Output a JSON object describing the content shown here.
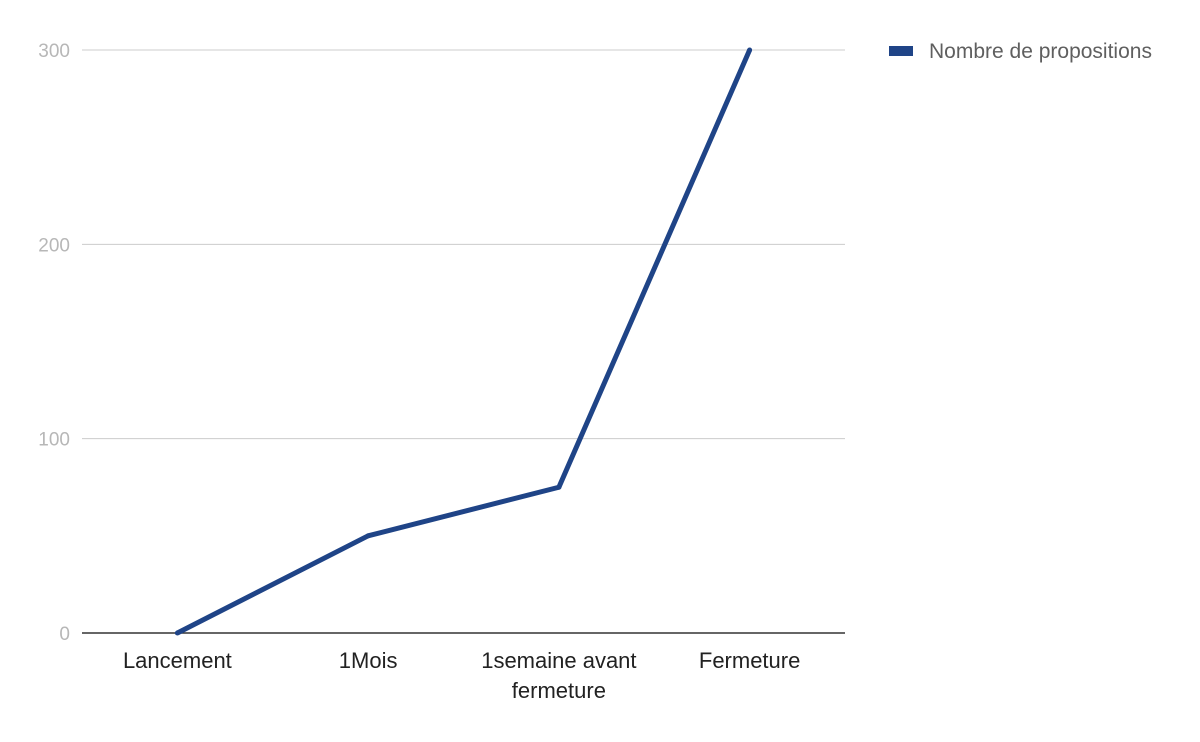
{
  "chart_data": {
    "type": "line",
    "title": "",
    "xlabel": "",
    "ylabel": "",
    "categories": [
      [
        "Lancement"
      ],
      [
        "1Mois"
      ],
      [
        "1semaine avant",
        "fermeture"
      ],
      [
        "Fermeture"
      ]
    ],
    "series": [
      {
        "name": "Nombre de propositions",
        "values": [
          0,
          50,
          75,
          300
        ],
        "color": "#1f4487"
      }
    ],
    "ylim": [
      0,
      300
    ],
    "yticks": [
      "0",
      "100",
      "200",
      "300"
    ],
    "grid": true,
    "legend_position": "top-right",
    "colors": {
      "grid": "#cccccc",
      "axis": "#333333",
      "tick_y": "#b7b7b7",
      "tick_x": "#222222",
      "legend_text": "#5f5f5f"
    }
  }
}
